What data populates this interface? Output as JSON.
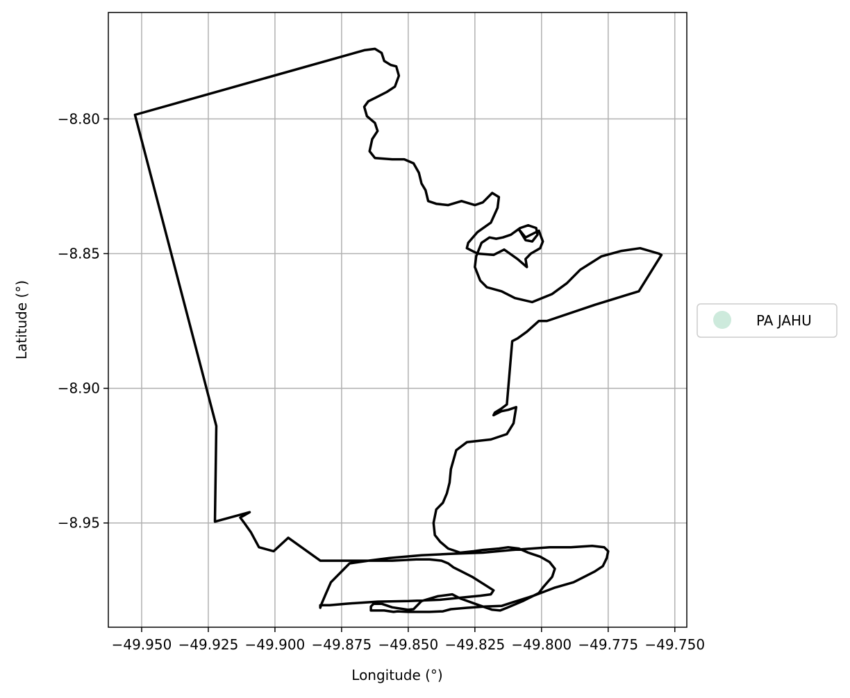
{
  "chart_data": {
    "type": "map",
    "xlabel": "Longitude (°)",
    "ylabel": "Latitude (°)",
    "xlim": [
      -49.9625,
      -49.7455
    ],
    "ylim": [
      -8.9887,
      -8.7605
    ],
    "grid": true,
    "xticks": [
      -49.95,
      -49.925,
      -49.9,
      -49.875,
      -49.85,
      -49.825,
      -49.8,
      -49.775,
      -49.75
    ],
    "xtick_labels": [
      "−49.950",
      "−49.925",
      "−49.900",
      "−49.875",
      "−49.850",
      "−49.825",
      "−49.800",
      "−49.775",
      "−49.750"
    ],
    "yticks": [
      -8.8,
      -8.85,
      -8.9,
      -8.95
    ],
    "ytick_labels": [
      "−8.80",
      "−8.85",
      "−8.90",
      "−8.95"
    ],
    "legend": {
      "placement": "right",
      "entries": [
        {
          "label": "PA JAHU",
          "color": "#cdeadc"
        }
      ]
    },
    "boundary_color": "#000000",
    "boundary": [
      [
        -49.9525,
        -8.7985
      ],
      [
        -49.8665,
        -8.7745
      ],
      [
        -49.8625,
        -8.774
      ],
      [
        -49.86,
        -8.7755
      ],
      [
        -49.859,
        -8.7785
      ],
      [
        -49.8565,
        -8.78
      ],
      [
        -49.8545,
        -8.7805
      ],
      [
        -49.8535,
        -8.784
      ],
      [
        -49.855,
        -8.788
      ],
      [
        -49.858,
        -8.79
      ],
      [
        -49.862,
        -8.792
      ],
      [
        -49.865,
        -8.7935
      ],
      [
        -49.8665,
        -8.7955
      ],
      [
        -49.8655,
        -8.799
      ],
      [
        -49.8625,
        -8.8015
      ],
      [
        -49.8615,
        -8.8045
      ],
      [
        -49.8635,
        -8.8075
      ],
      [
        -49.8645,
        -8.812
      ],
      [
        -49.8625,
        -8.8145
      ],
      [
        -49.856,
        -8.815
      ],
      [
        -49.8515,
        -8.815
      ],
      [
        -49.848,
        -8.8165
      ],
      [
        -49.846,
        -8.82
      ],
      [
        -49.845,
        -8.824
      ],
      [
        -49.8435,
        -8.8265
      ],
      [
        -49.8425,
        -8.8305
      ],
      [
        -49.8395,
        -8.8315
      ],
      [
        -49.835,
        -8.832
      ],
      [
        -49.83,
        -8.8305
      ],
      [
        -49.825,
        -8.832
      ],
      [
        -49.822,
        -8.831
      ],
      [
        -49.8185,
        -8.8275
      ],
      [
        -49.816,
        -8.829
      ],
      [
        -49.8165,
        -8.833
      ],
      [
        -49.819,
        -8.8385
      ],
      [
        -49.824,
        -8.842
      ],
      [
        -49.8275,
        -8.846
      ],
      [
        -49.828,
        -8.848
      ],
      [
        -49.824,
        -8.85
      ],
      [
        -49.818,
        -8.8505
      ],
      [
        -49.814,
        -8.8485
      ],
      [
        -49.809,
        -8.852
      ],
      [
        -49.8055,
        -8.855
      ],
      [
        -49.806,
        -8.852
      ],
      [
        -49.804,
        -8.85
      ],
      [
        -49.8005,
        -8.848
      ],
      [
        -49.7995,
        -8.8455
      ],
      [
        -49.801,
        -8.8415
      ],
      [
        -49.806,
        -8.844
      ],
      [
        -49.8085,
        -8.841
      ],
      [
        -49.806,
        -8.845
      ],
      [
        -49.8035,
        -8.8455
      ],
      [
        -49.8015,
        -8.843
      ],
      [
        -49.802,
        -8.8405
      ],
      [
        -49.805,
        -8.8395
      ],
      [
        -49.808,
        -8.8405
      ],
      [
        -49.8115,
        -8.843
      ],
      [
        -49.8145,
        -8.844
      ],
      [
        -49.817,
        -8.8445
      ],
      [
        -49.8195,
        -8.844
      ],
      [
        -49.8225,
        -8.846
      ],
      [
        -49.8245,
        -8.851
      ],
      [
        -49.825,
        -8.855
      ],
      [
        -49.823,
        -8.86
      ],
      [
        -49.8205,
        -8.8625
      ],
      [
        -49.815,
        -8.864
      ],
      [
        -49.81,
        -8.8665
      ],
      [
        -49.8035,
        -8.868
      ],
      [
        -49.796,
        -8.865
      ],
      [
        -49.7905,
        -8.861
      ],
      [
        -49.7855,
        -8.856
      ],
      [
        -49.7775,
        -8.851
      ],
      [
        -49.77,
        -8.849
      ],
      [
        -49.763,
        -8.848
      ],
      [
        -49.756,
        -8.85
      ],
      [
        -49.755,
        -8.8505
      ],
      [
        -49.7635,
        -8.864
      ],
      [
        -49.7685,
        -8.8655
      ],
      [
        -49.78,
        -8.869
      ],
      [
        -49.798,
        -8.875
      ],
      [
        -49.801,
        -8.875
      ],
      [
        -49.8055,
        -8.879
      ],
      [
        -49.809,
        -8.8815
      ],
      [
        -49.811,
        -8.8825
      ],
      [
        -49.813,
        -8.906
      ],
      [
        -49.815,
        -8.9075
      ],
      [
        -49.8175,
        -8.909
      ],
      [
        -49.818,
        -8.91
      ],
      [
        -49.815,
        -8.9085
      ],
      [
        -49.8125,
        -8.908
      ],
      [
        -49.8095,
        -8.907
      ],
      [
        -49.8105,
        -8.913
      ],
      [
        -49.813,
        -8.917
      ],
      [
        -49.819,
        -8.919
      ],
      [
        -49.828,
        -8.92
      ],
      [
        -49.832,
        -8.923
      ],
      [
        -49.834,
        -8.93
      ],
      [
        -49.8345,
        -8.935
      ],
      [
        -49.8355,
        -8.939
      ],
      [
        -49.837,
        -8.9425
      ],
      [
        -49.8395,
        -8.945
      ],
      [
        -49.8405,
        -8.95
      ],
      [
        -49.84,
        -8.9545
      ],
      [
        -49.838,
        -8.957
      ],
      [
        -49.835,
        -8.9595
      ],
      [
        -49.8305,
        -8.961
      ],
      [
        -49.8255,
        -8.9605
      ],
      [
        -49.822,
        -8.96
      ],
      [
        -49.816,
        -8.9595
      ],
      [
        -49.8125,
        -8.959
      ],
      [
        -49.8085,
        -8.9595
      ],
      [
        -49.805,
        -8.961
      ],
      [
        -49.8005,
        -8.9625
      ],
      [
        -49.797,
        -8.9645
      ],
      [
        -49.795,
        -8.967
      ],
      [
        -49.796,
        -8.97
      ],
      [
        -49.7995,
        -8.974
      ],
      [
        -49.801,
        -8.976
      ],
      [
        -49.807,
        -8.979
      ],
      [
        -49.813,
        -8.9815
      ],
      [
        -49.8155,
        -8.9825
      ],
      [
        -49.8185,
        -8.9822
      ],
      [
        -49.8235,
        -8.9805
      ],
      [
        -49.8305,
        -8.978
      ],
      [
        -49.8335,
        -8.9765
      ],
      [
        -49.839,
        -8.9772
      ],
      [
        -49.845,
        -8.979
      ],
      [
        -49.848,
        -8.982
      ],
      [
        -49.85,
        -8.9822
      ],
      [
        -49.856,
        -8.9813
      ],
      [
        -49.86,
        -8.98
      ],
      [
        -49.863,
        -8.98
      ],
      [
        -49.864,
        -8.981
      ],
      [
        -49.864,
        -8.9825
      ],
      [
        -49.859,
        -8.9825
      ],
      [
        -49.8555,
        -8.983
      ],
      [
        -49.854,
        -8.9828
      ],
      [
        -49.85,
        -8.983
      ],
      [
        -49.842,
        -8.983
      ],
      [
        -49.837,
        -8.9828
      ],
      [
        -49.834,
        -8.982
      ],
      [
        -49.828,
        -8.9815
      ],
      [
        -49.821,
        -8.981
      ],
      [
        -49.815,
        -8.9808
      ],
      [
        -49.811,
        -8.9795
      ],
      [
        -49.803,
        -8.977
      ],
      [
        -49.795,
        -8.974
      ],
      [
        -49.788,
        -8.972
      ],
      [
        -49.784,
        -8.97
      ],
      [
        -49.78,
        -8.968
      ],
      [
        -49.777,
        -8.966
      ],
      [
        -49.7755,
        -8.963
      ],
      [
        -49.775,
        -8.9605
      ],
      [
        -49.7765,
        -8.959
      ],
      [
        -49.781,
        -8.9585
      ],
      [
        -49.789,
        -8.959
      ],
      [
        -49.797,
        -8.959
      ],
      [
        -49.811,
        -8.96
      ],
      [
        -49.822,
        -8.961
      ],
      [
        -49.835,
        -8.9615
      ],
      [
        -49.845,
        -8.962
      ],
      [
        -49.857,
        -8.963
      ],
      [
        -49.865,
        -8.964
      ],
      [
        -49.872,
        -8.965
      ],
      [
        -49.875,
        -8.968
      ],
      [
        -49.879,
        -8.972
      ],
      [
        -49.881,
        -8.9765
      ],
      [
        -49.8825,
        -8.98
      ],
      [
        -49.883,
        -8.9815
      ],
      [
        -49.883,
        -8.9805
      ],
      [
        -49.8795,
        -8.9805
      ],
      [
        -49.8735,
        -8.98
      ],
      [
        -49.8615,
        -8.9792
      ],
      [
        -49.8498,
        -8.979
      ],
      [
        -49.838,
        -8.9785
      ],
      [
        -49.828,
        -8.9775
      ],
      [
        -49.823,
        -8.977
      ],
      [
        -49.819,
        -8.9765
      ],
      [
        -49.818,
        -8.975
      ],
      [
        -49.826,
        -8.97
      ],
      [
        -49.83,
        -8.968
      ],
      [
        -49.833,
        -8.9665
      ],
      [
        -49.835,
        -8.965
      ],
      [
        -49.8375,
        -8.964
      ],
      [
        -49.842,
        -8.9635
      ],
      [
        -49.847,
        -8.9635
      ],
      [
        -49.856,
        -8.964
      ],
      [
        -49.866,
        -8.964
      ],
      [
        -49.873,
        -8.964
      ],
      [
        -49.883,
        -8.964
      ],
      [
        -49.895,
        -8.9555
      ],
      [
        -49.9005,
        -8.9605
      ],
      [
        -49.906,
        -8.959
      ],
      [
        -49.909,
        -8.9535
      ],
      [
        -49.9115,
        -8.95
      ],
      [
        -49.913,
        -8.948
      ],
      [
        -49.9095,
        -8.946
      ],
      [
        -49.9225,
        -8.9495
      ],
      [
        -49.922,
        -8.914
      ],
      [
        -49.9525,
        -8.7985
      ]
    ]
  }
}
